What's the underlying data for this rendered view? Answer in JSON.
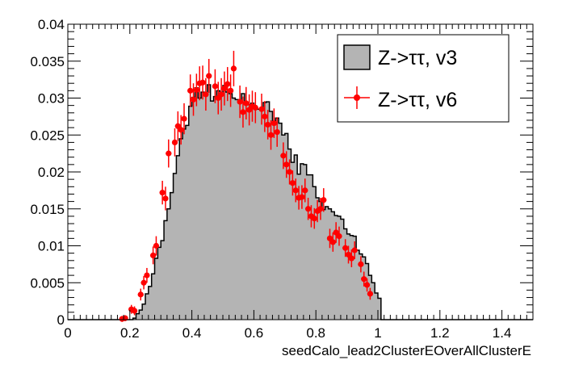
{
  "chart_data": {
    "type": "histogram",
    "title": "",
    "xlabel": "seedCalo_lead2ClusterEOverAllClusterE",
    "ylabel": "",
    "xlim": [
      0,
      1.5
    ],
    "ylim": [
      0,
      0.04
    ],
    "x_ticks": [
      "0",
      "0.2",
      "0.4",
      "0.6",
      "0.8",
      "1",
      "1.2",
      "1.4"
    ],
    "y_ticks": [
      "0",
      "0.005",
      "0.01",
      "0.015",
      "0.02",
      "0.025",
      "0.03",
      "0.035",
      "0.04"
    ],
    "legend_position": "top-right",
    "bins": {
      "start": 0.0,
      "width": 0.01,
      "count": 150
    },
    "series": [
      {
        "name": "Z->ττ, v3",
        "style": "filled-histogram",
        "fill_color": "#b4b4b4",
        "line_color": "#000000",
        "values": [
          0,
          0,
          0,
          0,
          0,
          0,
          0,
          0,
          0,
          0,
          0,
          0,
          0,
          0,
          0,
          0,
          0,
          0,
          0,
          0,
          0,
          0.0002,
          0.0008,
          0.0013,
          0.0021,
          0.0035,
          0.0045,
          0.0062,
          0.0083,
          0.0098,
          0.0107,
          0.0134,
          0.015,
          0.0172,
          0.0198,
          0.0222,
          0.0245,
          0.0258,
          0.0263,
          0.0289,
          0.0301,
          0.0314,
          0.03,
          0.0308,
          0.0303,
          0.0318,
          0.0296,
          0.0302,
          0.031,
          0.0304,
          0.0317,
          0.0308,
          0.0306,
          0.03,
          0.0298,
          0.0296,
          0.0306,
          0.0292,
          0.0291,
          0.0293,
          0.0289,
          0.0285,
          0.0284,
          0.0294,
          0.0295,
          0.0282,
          0.0264,
          0.0273,
          0.0266,
          0.025,
          0.0252,
          0.0231,
          0.0213,
          0.0223,
          0.0197,
          0.0211,
          0.021,
          0.0196,
          0.0196,
          0.018,
          0.0165,
          0.016,
          0.0149,
          0.0153,
          0.015,
          0.0146,
          0.0141,
          0.014,
          0.0136,
          0.0123,
          0.0116,
          0.0114,
          0.0113,
          0.0094,
          0.0089,
          0.0085,
          0.0076,
          0.006,
          0.005,
          0.0036,
          0.0029,
          0,
          0,
          0,
          0,
          0,
          0,
          0,
          0,
          0,
          0,
          0,
          0,
          0,
          0,
          0,
          0,
          0,
          0,
          0,
          0,
          0,
          0,
          0,
          0,
          0,
          0,
          0,
          0,
          0,
          0,
          0,
          0,
          0,
          0,
          0,
          0,
          0,
          0,
          0,
          0,
          0,
          0,
          0,
          0,
          0,
          0,
          0,
          0,
          0
        ]
      },
      {
        "name": "Z->ττ, v6",
        "style": "points-with-error-bars",
        "marker_color": "#ff0000",
        "points": [
          {
            "x": 0.175,
            "y": 0.0001,
            "err": 0.0004
          },
          {
            "x": 0.185,
            "y": 0.0002,
            "err": 0.0004
          },
          {
            "x": 0.205,
            "y": 0.0014,
            "err": 0.0006
          },
          {
            "x": 0.215,
            "y": 0.0012,
            "err": 0.0006
          },
          {
            "x": 0.235,
            "y": 0.0034,
            "err": 0.0008
          },
          {
            "x": 0.245,
            "y": 0.005,
            "err": 0.0009
          },
          {
            "x": 0.255,
            "y": 0.006,
            "err": 0.001
          },
          {
            "x": 0.275,
            "y": 0.0087,
            "err": 0.0012
          },
          {
            "x": 0.285,
            "y": 0.01,
            "err": 0.0013
          },
          {
            "x": 0.305,
            "y": 0.0172,
            "err": 0.0016
          },
          {
            "x": 0.315,
            "y": 0.0164,
            "err": 0.0016
          },
          {
            "x": 0.325,
            "y": 0.0225,
            "err": 0.0019
          },
          {
            "x": 0.345,
            "y": 0.024,
            "err": 0.0019
          },
          {
            "x": 0.355,
            "y": 0.0262,
            "err": 0.002
          },
          {
            "x": 0.365,
            "y": 0.0257,
            "err": 0.002
          },
          {
            "x": 0.375,
            "y": 0.0272,
            "err": 0.0021
          },
          {
            "x": 0.395,
            "y": 0.031,
            "err": 0.0022
          },
          {
            "x": 0.405,
            "y": 0.0298,
            "err": 0.0022
          },
          {
            "x": 0.415,
            "y": 0.0311,
            "err": 0.0022
          },
          {
            "x": 0.425,
            "y": 0.032,
            "err": 0.0023
          },
          {
            "x": 0.435,
            "y": 0.0321,
            "err": 0.0023
          },
          {
            "x": 0.445,
            "y": 0.0305,
            "err": 0.0022
          },
          {
            "x": 0.455,
            "y": 0.033,
            "err": 0.0023
          },
          {
            "x": 0.475,
            "y": 0.0316,
            "err": 0.0023
          },
          {
            "x": 0.485,
            "y": 0.03,
            "err": 0.0022
          },
          {
            "x": 0.495,
            "y": 0.0305,
            "err": 0.0022
          },
          {
            "x": 0.505,
            "y": 0.0313,
            "err": 0.0023
          },
          {
            "x": 0.515,
            "y": 0.0319,
            "err": 0.0023
          },
          {
            "x": 0.525,
            "y": 0.031,
            "err": 0.0022
          },
          {
            "x": 0.535,
            "y": 0.034,
            "err": 0.0024
          },
          {
            "x": 0.555,
            "y": 0.0295,
            "err": 0.0022
          },
          {
            "x": 0.565,
            "y": 0.0281,
            "err": 0.0021
          },
          {
            "x": 0.575,
            "y": 0.0293,
            "err": 0.0022
          },
          {
            "x": 0.585,
            "y": 0.0284,
            "err": 0.0021
          },
          {
            "x": 0.595,
            "y": 0.0289,
            "err": 0.0021
          },
          {
            "x": 0.605,
            "y": 0.0287,
            "err": 0.0021
          },
          {
            "x": 0.625,
            "y": 0.0285,
            "err": 0.0021
          },
          {
            "x": 0.635,
            "y": 0.0275,
            "err": 0.0021
          },
          {
            "x": 0.645,
            "y": 0.0264,
            "err": 0.002
          },
          {
            "x": 0.655,
            "y": 0.025,
            "err": 0.002
          },
          {
            "x": 0.665,
            "y": 0.0266,
            "err": 0.002
          },
          {
            "x": 0.675,
            "y": 0.0254,
            "err": 0.002
          },
          {
            "x": 0.695,
            "y": 0.0222,
            "err": 0.0018
          },
          {
            "x": 0.705,
            "y": 0.021,
            "err": 0.0018
          },
          {
            "x": 0.715,
            "y": 0.02,
            "err": 0.0017
          },
          {
            "x": 0.725,
            "y": 0.0185,
            "err": 0.0017
          },
          {
            "x": 0.735,
            "y": 0.0175,
            "err": 0.0016
          },
          {
            "x": 0.745,
            "y": 0.0165,
            "err": 0.0016
          },
          {
            "x": 0.755,
            "y": 0.0166,
            "err": 0.0016
          },
          {
            "x": 0.765,
            "y": 0.0175,
            "err": 0.0016
          },
          {
            "x": 0.775,
            "y": 0.015,
            "err": 0.0015
          },
          {
            "x": 0.785,
            "y": 0.014,
            "err": 0.0015
          },
          {
            "x": 0.795,
            "y": 0.0137,
            "err": 0.0014
          },
          {
            "x": 0.805,
            "y": 0.0147,
            "err": 0.0015
          },
          {
            "x": 0.815,
            "y": 0.015,
            "err": 0.0015
          },
          {
            "x": 0.825,
            "y": 0.0162,
            "err": 0.0016
          },
          {
            "x": 0.845,
            "y": 0.011,
            "err": 0.0013
          },
          {
            "x": 0.855,
            "y": 0.0105,
            "err": 0.0013
          },
          {
            "x": 0.865,
            "y": 0.0118,
            "err": 0.0014
          },
          {
            "x": 0.875,
            "y": 0.0113,
            "err": 0.0013
          },
          {
            "x": 0.895,
            "y": 0.0097,
            "err": 0.0012
          },
          {
            "x": 0.905,
            "y": 0.0088,
            "err": 0.0012
          },
          {
            "x": 0.915,
            "y": 0.0083,
            "err": 0.0012
          },
          {
            "x": 0.925,
            "y": 0.0094,
            "err": 0.0012
          },
          {
            "x": 0.945,
            "y": 0.0075,
            "err": 0.0011
          },
          {
            "x": 0.955,
            "y": 0.0055,
            "err": 0.001
          },
          {
            "x": 0.965,
            "y": 0.0047,
            "err": 0.0009
          },
          {
            "x": 0.975,
            "y": 0.0035,
            "err": 0.0008
          }
        ]
      }
    ]
  }
}
